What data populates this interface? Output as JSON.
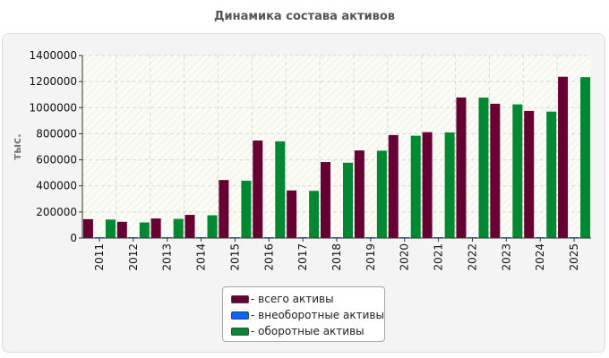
{
  "chart_data": {
    "type": "bar",
    "title": "Динамика состава активов",
    "ylabel": "тыс.",
    "xlabel": "",
    "ylim": [
      0,
      1400000
    ],
    "yticks": [
      0,
      200000,
      400000,
      600000,
      800000,
      1000000,
      1200000,
      1400000
    ],
    "grid": true,
    "legend_position": "bottom-center",
    "categories": [
      "2011",
      "2012",
      "2013",
      "2014",
      "2015",
      "2016",
      "2017",
      "2018",
      "2019",
      "2020",
      "2021",
      "2022",
      "2023",
      "2024",
      "2025"
    ],
    "series": [
      {
        "name": "- всего активы",
        "color": "#660033",
        "values": [
          145000,
          125000,
          150000,
          178000,
          445000,
          748000,
          365000,
          583000,
          672000,
          790000,
          812000,
          1078000,
          1030000,
          975000,
          1237000
        ]
      },
      {
        "name": "- внеоборотные активы",
        "color": "#0066ff",
        "values": [
          3000,
          3000,
          3000,
          3000,
          3000,
          3000,
          3000,
          3000,
          3000,
          3000,
          3000,
          3000,
          3000,
          3000,
          3000
        ]
      },
      {
        "name": "- оборотные активы",
        "color": "#008833",
        "values": [
          142000,
          120000,
          147000,
          175000,
          440000,
          742000,
          362000,
          578000,
          670000,
          785000,
          810000,
          1077000,
          1025000,
          970000,
          1234000
        ]
      }
    ]
  }
}
